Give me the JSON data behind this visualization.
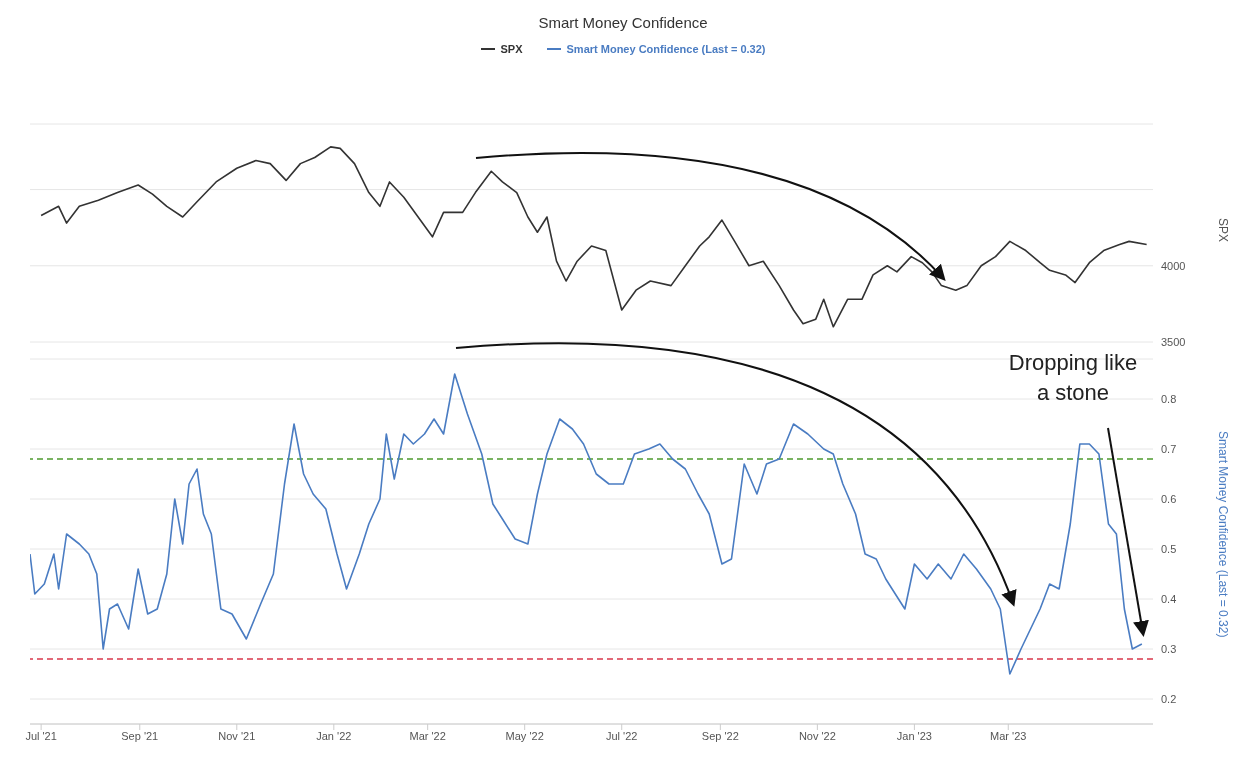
{
  "chart_data": [
    {
      "type": "line",
      "title": "Smart Money Confidence",
      "ylabel": "SPX",
      "legend": "top",
      "grid": "y",
      "tick_labels": "y",
      "marker": "none",
      "line_style": "solid",
      "xlim": [
        "2021-06-24",
        "2023-05-31"
      ],
      "ylim": [
        3500,
        4930
      ],
      "yticks": [
        3500,
        4000,
        {
          "value": 4500,
          "label": null
        }
      ],
      "series": [
        {
          "name": "SPX",
          "color": "#333333",
          "x": [
            "2021-07-01",
            "2021-07-12",
            "2021-07-17",
            "2021-07-25",
            "2021-08-06",
            "2021-08-18",
            "2021-08-31",
            "2021-09-09",
            "2021-09-18",
            "2021-09-28",
            "2021-10-07",
            "2021-10-19",
            "2021-11-01",
            "2021-11-13",
            "2021-11-22",
            "2021-12-02",
            "2021-12-11",
            "2021-12-20",
            "2021-12-30",
            "2022-01-05",
            "2022-01-14",
            "2022-01-23",
            "2022-01-30",
            "2022-02-05",
            "2022-02-14",
            "2022-02-23",
            "2022-03-04",
            "2022-03-11",
            "2022-03-23",
            "2022-03-31",
            "2022-04-10",
            "2022-04-17",
            "2022-04-26",
            "2022-05-03",
            "2022-05-09",
            "2022-05-15",
            "2022-05-21",
            "2022-05-27",
            "2022-06-03",
            "2022-06-12",
            "2022-06-21",
            "2022-07-01",
            "2022-07-10",
            "2022-07-19",
            "2022-08-01",
            "2022-08-10",
            "2022-08-19",
            "2022-08-25",
            "2022-09-02",
            "2022-09-10",
            "2022-09-19",
            "2022-09-28",
            "2022-10-08",
            "2022-10-17",
            "2022-10-23",
            "2022-10-31",
            "2022-11-05",
            "2022-11-11",
            "2022-11-20",
            "2022-11-29",
            "2022-12-06",
            "2022-12-15",
            "2022-12-21",
            "2022-12-30",
            "2023-01-06",
            "2023-01-12",
            "2023-01-18",
            "2023-01-27",
            "2023-02-03",
            "2023-02-12",
            "2023-02-21",
            "2023-03-02",
            "2023-03-12",
            "2023-03-21",
            "2023-03-27",
            "2023-04-06",
            "2023-04-12",
            "2023-04-21",
            "2023-04-30",
            "2023-05-10",
            "2023-05-16",
            "2023-05-27"
          ],
          "values": [
            4330,
            4390,
            4280,
            4390,
            4430,
            4480,
            4530,
            4470,
            4390,
            4320,
            4420,
            4550,
            4640,
            4690,
            4670,
            4560,
            4670,
            4710,
            4780,
            4770,
            4670,
            4480,
            4390,
            4550,
            4450,
            4320,
            4190,
            4350,
            4350,
            4480,
            4620,
            4550,
            4480,
            4320,
            4220,
            4320,
            4030,
            3900,
            4030,
            4130,
            4100,
            3710,
            3840,
            3900,
            3870,
            4000,
            4130,
            4190,
            4300,
            4160,
            4000,
            4030,
            3870,
            3710,
            3620,
            3650,
            3780,
            3600,
            3780,
            3780,
            3940,
            4000,
            3960,
            4060,
            4020,
            3960,
            3870,
            3840,
            3870,
            4000,
            4060,
            4160,
            4100,
            4020,
            3970,
            3940,
            3890,
            4020,
            4100,
            4140,
            4160,
            4140
          ]
        }
      ]
    },
    {
      "type": "line",
      "ylabel": "Smart Money Confidence (Last = 0.32)",
      "legend": "top",
      "grid": "y",
      "marker": "none",
      "line_style": "solid",
      "xlim": [
        "2021-06-24",
        "2023-05-31"
      ],
      "ylim": [
        0.15,
        0.88
      ],
      "yticks": [
        0.2,
        0.3,
        0.4,
        0.5,
        0.6,
        0.7,
        0.8
      ],
      "xticks": [
        {
          "value": "2021-07-01",
          "label": "Jul '21"
        },
        {
          "value": "2021-09-01",
          "label": "Sep '21"
        },
        {
          "value": "2021-11-01",
          "label": "Nov '21"
        },
        {
          "value": "2022-01-01",
          "label": "Jan '22"
        },
        {
          "value": "2022-03-01",
          "label": "Mar '22"
        },
        {
          "value": "2022-05-01",
          "label": "May '22"
        },
        {
          "value": "2022-07-01",
          "label": "Jul '22"
        },
        {
          "value": "2022-09-01",
          "label": "Sep '22"
        },
        {
          "value": "2022-11-01",
          "label": "Nov '22"
        },
        {
          "value": "2023-01-01",
          "label": "Jan '23"
        },
        {
          "value": "2023-03-01",
          "label": "Mar '23"
        }
      ],
      "ref_lines": [
        {
          "axis": "y",
          "value": 0.68,
          "color": "#4e9a2e",
          "line_style": "dashed"
        },
        {
          "axis": "y",
          "value": 0.28,
          "color": "#d9374b",
          "line_style": "dashed"
        }
      ],
      "annotations": [
        "Dropping like a stone"
      ],
      "series": [
        {
          "name": "Smart Money Confidence (Last = 0.32)",
          "color": "#4a7cc2",
          "x": [
            "2021-06-24",
            "2021-06-27",
            "2021-07-03",
            "2021-07-09",
            "2021-07-12",
            "2021-07-17",
            "2021-07-25",
            "2021-07-31",
            "2021-08-05",
            "2021-08-09",
            "2021-08-13",
            "2021-08-18",
            "2021-08-25",
            "2021-08-31",
            "2021-09-06",
            "2021-09-12",
            "2021-09-18",
            "2021-09-23",
            "2021-09-28",
            "2021-10-02",
            "2021-10-07",
            "2021-10-11",
            "2021-10-16",
            "2021-10-22",
            "2021-10-29",
            "2021-11-07",
            "2021-11-16",
            "2021-11-24",
            "2021-12-01",
            "2021-12-07",
            "2021-12-13",
            "2021-12-19",
            "2021-12-27",
            "2022-01-03",
            "2022-01-09",
            "2022-01-17",
            "2022-01-23",
            "2022-01-30",
            "2022-02-03",
            "2022-02-08",
            "2022-02-14",
            "2022-02-20",
            "2022-02-27",
            "2022-03-05",
            "2022-03-11",
            "2022-03-18",
            "2022-03-26",
            "2022-04-04",
            "2022-04-11",
            "2022-04-17",
            "2022-04-25",
            "2022-05-03",
            "2022-05-09",
            "2022-05-15",
            "2022-05-23",
            "2022-05-31",
            "2022-06-07",
            "2022-06-15",
            "2022-06-23",
            "2022-07-02",
            "2022-07-09",
            "2022-07-18",
            "2022-07-25",
            "2022-08-02",
            "2022-08-10",
            "2022-08-18",
            "2022-08-25",
            "2022-09-02",
            "2022-09-08",
            "2022-09-16",
            "2022-09-24",
            "2022-09-30",
            "2022-10-08",
            "2022-10-17",
            "2022-10-26",
            "2022-11-05",
            "2022-11-11",
            "2022-11-17",
            "2022-11-25",
            "2022-12-01",
            "2022-12-08",
            "2022-12-14",
            "2022-12-20",
            "2022-12-26",
            "2023-01-01",
            "2023-01-09",
            "2023-01-16",
            "2023-01-24",
            "2023-02-01",
            "2023-02-09",
            "2023-02-18",
            "2023-02-24",
            "2023-03-02",
            "2023-03-09",
            "2023-03-15",
            "2023-03-21",
            "2023-03-27",
            "2023-04-02",
            "2023-04-09",
            "2023-04-15",
            "2023-04-21",
            "2023-04-27",
            "2023-05-03",
            "2023-05-08",
            "2023-05-13",
            "2023-05-18",
            "2023-05-24"
          ],
          "values": [
            0.49,
            0.41,
            0.43,
            0.49,
            0.42,
            0.53,
            0.51,
            0.49,
            0.45,
            0.3,
            0.38,
            0.39,
            0.34,
            0.46,
            0.37,
            0.38,
            0.45,
            0.6,
            0.51,
            0.63,
            0.66,
            0.57,
            0.53,
            0.38,
            0.37,
            0.32,
            0.39,
            0.45,
            0.63,
            0.75,
            0.65,
            0.61,
            0.58,
            0.49,
            0.42,
            0.49,
            0.55,
            0.6,
            0.73,
            0.64,
            0.73,
            0.71,
            0.73,
            0.76,
            0.73,
            0.85,
            0.77,
            0.69,
            0.59,
            0.56,
            0.52,
            0.51,
            0.61,
            0.69,
            0.76,
            0.74,
            0.71,
            0.65,
            0.63,
            0.63,
            0.69,
            0.7,
            0.71,
            0.68,
            0.66,
            0.61,
            0.57,
            0.47,
            0.48,
            0.67,
            0.61,
            0.67,
            0.68,
            0.75,
            0.73,
            0.7,
            0.69,
            0.63,
            0.57,
            0.49,
            0.48,
            0.44,
            0.41,
            0.38,
            0.47,
            0.44,
            0.47,
            0.44,
            0.49,
            0.46,
            0.42,
            0.38,
            0.25,
            0.3,
            0.34,
            0.38,
            0.43,
            0.42,
            0.55,
            0.71,
            0.71,
            0.69,
            0.55,
            0.53,
            0.38,
            0.3,
            0.31
          ]
        }
      ]
    }
  ]
}
